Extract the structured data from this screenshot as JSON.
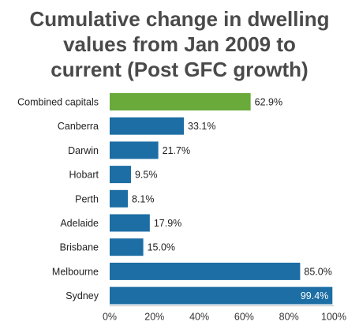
{
  "chart_data": {
    "type": "bar",
    "orientation": "horizontal",
    "title_lines": [
      "Cumulative change in dwelling",
      "values from Jan 2009 to",
      "current (Post GFC growth)"
    ],
    "categories": [
      "Combined capitals",
      "Canberra",
      "Darwin",
      "Hobart",
      "Perth",
      "Adelaide",
      "Brisbane",
      "Melbourne",
      "Sydney"
    ],
    "values": [
      62.9,
      33.1,
      21.7,
      9.5,
      8.1,
      17.9,
      15.0,
      85.0,
      99.4
    ],
    "value_labels": [
      "62.9%",
      "33.1%",
      "21.7%",
      "9.5%",
      "8.1%",
      "17.9%",
      "15.0%",
      "85.0%",
      "99.4%"
    ],
    "bar_colors": [
      "#6aaa3a",
      "#1c6ea4",
      "#1c6ea4",
      "#1c6ea4",
      "#1c6ea4",
      "#1c6ea4",
      "#1c6ea4",
      "#1c6ea4",
      "#1c6ea4"
    ],
    "xlim": [
      0,
      100
    ],
    "x_ticks": [
      0,
      20,
      40,
      60,
      80,
      100
    ],
    "x_tick_labels": [
      "0%",
      "20%",
      "40%",
      "60%",
      "80%",
      "100%"
    ],
    "grid": false,
    "legend": "none"
  }
}
